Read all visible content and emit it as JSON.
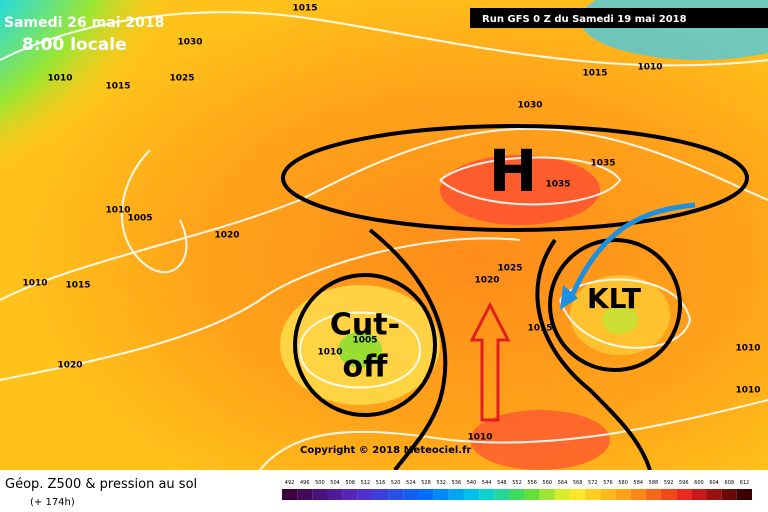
{
  "header": {
    "date": "Samedi 26 mai 2018",
    "time": "8:00 locale",
    "run": "Run GFS 0 Z du Samedi 19 mai 2018"
  },
  "isobar_labels": [
    "1015",
    "1030",
    "1025",
    "1010",
    "1015",
    "1015",
    "1010",
    "1030",
    "1035",
    "1035",
    "1010",
    "1005",
    "1020",
    "1025",
    "1020",
    "1010",
    "1015",
    "1015",
    "1005",
    "1010",
    "1020",
    "1010",
    "1010",
    "1010"
  ],
  "annotations": {
    "high": "H",
    "cutoff_line1": "Cut-",
    "cutoff_line2": "off",
    "klt": "KLT"
  },
  "copyright": "Copyright © 2018 Meteociel.fr",
  "legend": {
    "title": "Géop. Z500 & pression au sol",
    "lead": "(+ 174h)",
    "scale": [
      "492",
      "496",
      "500",
      "504",
      "508",
      "512",
      "516",
      "520",
      "524",
      "528",
      "532",
      "536",
      "540",
      "544",
      "548",
      "552",
      "556",
      "560",
      "564",
      "568",
      "572",
      "576",
      "580",
      "584",
      "588",
      "592",
      "596",
      "600",
      "604",
      "608",
      "612"
    ]
  }
}
